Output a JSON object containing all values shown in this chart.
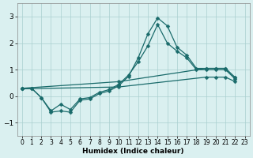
{
  "xlabel": "Humidex (Indice chaleur)",
  "bg_color": "#daf0f0",
  "grid_color": "#aacfcf",
  "line_color": "#1a6b6b",
  "xlim": [
    -0.5,
    23.5
  ],
  "ylim": [
    -1.5,
    3.5
  ],
  "xticks": [
    0,
    1,
    2,
    3,
    4,
    5,
    6,
    7,
    8,
    9,
    10,
    11,
    12,
    13,
    14,
    15,
    16,
    17,
    18,
    19,
    20,
    21,
    22,
    23
  ],
  "yticks": [
    -1,
    0,
    1,
    2,
    3
  ],
  "series_peak_x": [
    0,
    1,
    2,
    3,
    4,
    5,
    6,
    7,
    8,
    9,
    10,
    11,
    12,
    13,
    14,
    15,
    16,
    17,
    18,
    19,
    20,
    21,
    22
  ],
  "series_peak_y": [
    0.3,
    0.3,
    -0.05,
    -0.6,
    -0.55,
    -0.6,
    -0.15,
    -0.1,
    0.1,
    0.2,
    0.4,
    0.75,
    1.45,
    2.35,
    2.95,
    2.65,
    1.85,
    1.55,
    1.05,
    1.05,
    1.05,
    1.05,
    0.7
  ],
  "series_mid_x": [
    0,
    1,
    2,
    3,
    4,
    5,
    6,
    7,
    8,
    9,
    10,
    11,
    12,
    13,
    14,
    15,
    16,
    17,
    18,
    19,
    20,
    21,
    22
  ],
  "series_mid_y": [
    0.3,
    0.3,
    -0.05,
    -0.55,
    -0.3,
    -0.5,
    -0.1,
    -0.05,
    0.15,
    0.25,
    0.45,
    0.8,
    1.3,
    1.9,
    2.7,
    2.0,
    1.7,
    1.45,
    1.0,
    1.0,
    1.0,
    1.0,
    0.65
  ],
  "line_upper_x": [
    0,
    10,
    19,
    20,
    21,
    22
  ],
  "line_upper_y": [
    0.3,
    0.55,
    1.05,
    1.05,
    1.05,
    0.7
  ],
  "line_lower_x": [
    0,
    10,
    19,
    20,
    21,
    22
  ],
  "line_lower_y": [
    0.28,
    0.35,
    0.72,
    0.72,
    0.72,
    0.55
  ],
  "marker_size": 2.5,
  "linewidth": 0.9
}
